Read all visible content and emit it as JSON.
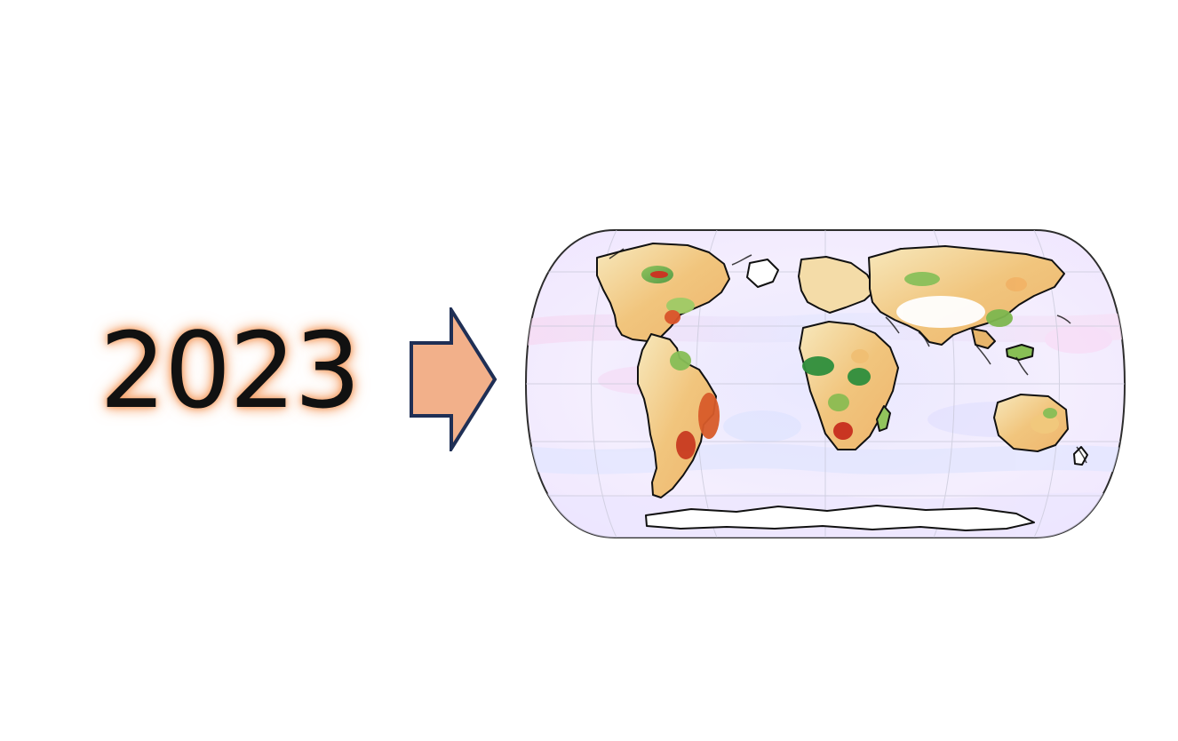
{
  "year": "2023",
  "arrow": {
    "fill": "#f2b08a",
    "stroke": "#1f2f55"
  },
  "map": {
    "projection": "robinson",
    "ocean_palette": [
      "#f1e7ff",
      "#dfe3ff",
      "#f6d8f4"
    ],
    "land_palette": [
      "#ffffff",
      "#f6e6b4",
      "#f0bf73",
      "#e7792f",
      "#c72e1e",
      "#8bbe4c",
      "#3d8d3c"
    ],
    "outline_color": "#111111"
  }
}
